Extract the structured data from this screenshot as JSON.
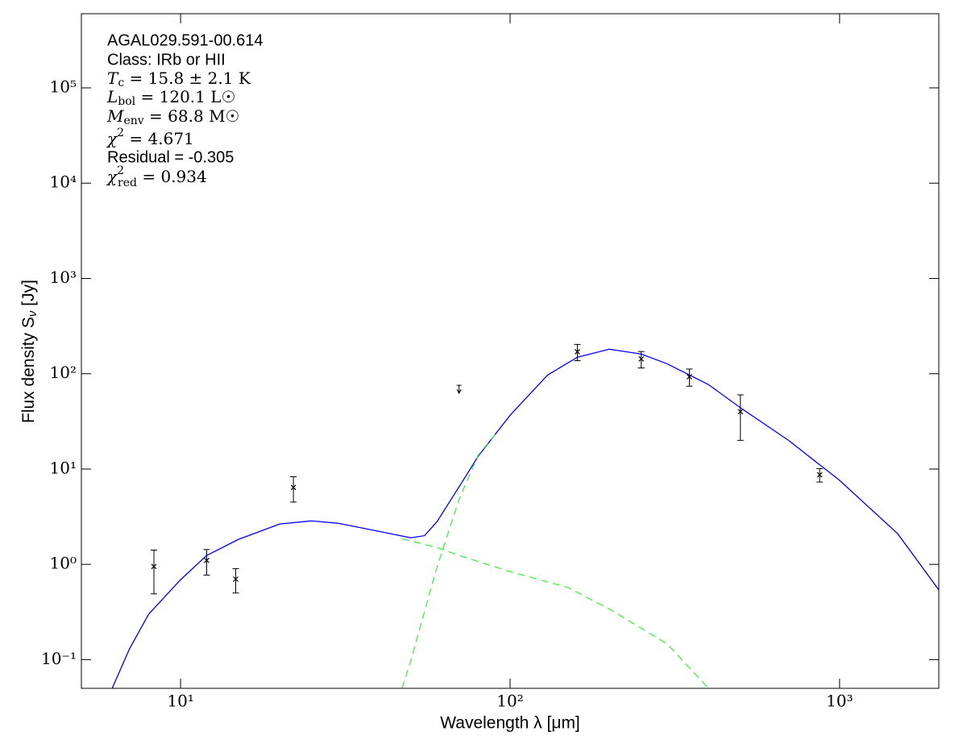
{
  "chart_data": {
    "type": "sed",
    "xlabel": "Wavelength λ [μm]",
    "ylabel": {
      "base": "Flux density S",
      "sub": "ν",
      "rest": " [Jy]"
    },
    "xscale": "log",
    "yscale": "log",
    "xlim": [
      5,
      2000
    ],
    "ylim": [
      0.05,
      600000
    ],
    "xticks": [
      {
        "value": 10,
        "label": "10¹"
      },
      {
        "value": 100,
        "label": "10²"
      },
      {
        "value": 1000,
        "label": "10³"
      }
    ],
    "yticks": [
      {
        "value": 0.1,
        "label": "10⁻¹"
      },
      {
        "value": 1,
        "label": "10⁰"
      },
      {
        "value": 10,
        "label": "10¹"
      },
      {
        "value": 100,
        "label": "10²"
      },
      {
        "value": 1000,
        "label": "10³"
      },
      {
        "value": 10000,
        "label": "10⁴"
      },
      {
        "value": 100000,
        "label": "10⁵"
      }
    ],
    "annotations": [
      {
        "text": "AGAL029.591-00.614"
      },
      {
        "text": "Class: IRb or HII"
      },
      {
        "base": "T",
        "sub": "c",
        "rest": " = 15.8 ± 2.1 K"
      },
      {
        "base": "L",
        "sub": "bol",
        "rest": " = 120.1 L☉"
      },
      {
        "base": "M",
        "sub": "env",
        "rest": " = 68.8 M☉"
      },
      {
        "base": "χ",
        "sup": "2",
        "rest": " = 4.671"
      },
      {
        "text": "Residual = -0.305"
      },
      {
        "base": "χ",
        "sup": "2",
        "sub": "red",
        "rest": " = 0.934"
      }
    ],
    "points": {
      "color": "#000000",
      "x": [
        8.3,
        12,
        14.7,
        22,
        160,
        250,
        350,
        500,
        870
      ],
      "values": [
        0.95,
        1.1,
        0.7,
        6.4,
        170,
        143,
        93,
        40,
        8.7
      ],
      "errors": [
        0.46,
        0.33,
        0.2,
        1.9,
        33,
        28,
        19,
        20,
        1.4
      ]
    },
    "upper_limits": {
      "color": "#000000",
      "x": [
        70
      ],
      "values": [
        70
      ]
    },
    "curves": [
      {
        "color": "#0000ff",
        "dashed": false,
        "x": [
          6.2,
          7,
          8,
          10,
          12,
          15,
          20,
          25,
          30,
          40,
          50,
          55,
          60,
          70,
          80,
          100,
          130,
          160,
          200,
          250,
          300,
          400,
          500,
          700,
          1000,
          1500,
          2000
        ],
        "values": [
          0.05,
          0.13,
          0.3,
          0.69,
          1.24,
          1.83,
          2.65,
          2.86,
          2.7,
          2.22,
          1.9,
          2.0,
          2.8,
          6.5,
          13.6,
          36.7,
          97,
          149,
          181,
          161,
          127,
          77,
          44,
          20,
          7.6,
          2.1,
          0.54
        ]
      },
      {
        "color": "#44ee44",
        "dashed": true,
        "x": [
          47,
          50,
          60,
          70,
          100,
          150,
          200,
          300,
          400
        ],
        "values": [
          1.85,
          1.76,
          1.5,
          1.24,
          0.84,
          0.57,
          0.34,
          0.146,
          0.05
        ]
      },
      {
        "color": "#44ee44",
        "dashed": true,
        "x": [
          47,
          50,
          55,
          60,
          70,
          80,
          90
        ],
        "values": [
          0.05,
          0.098,
          0.32,
          0.93,
          4.8,
          14,
          23
        ]
      }
    ]
  }
}
